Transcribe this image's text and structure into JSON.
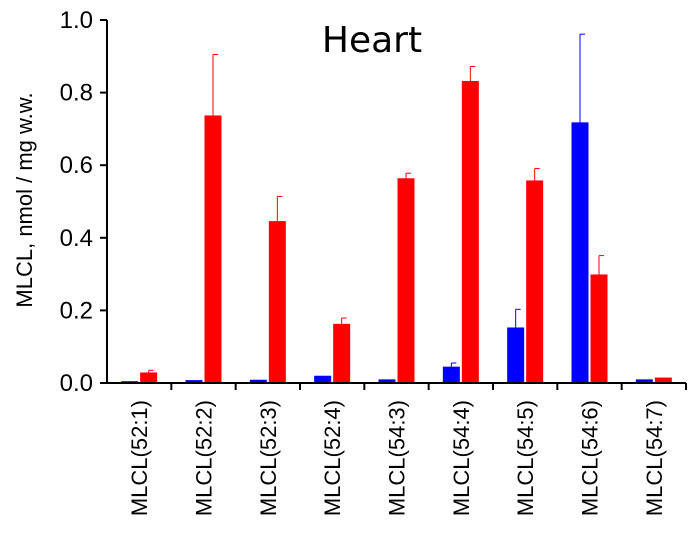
{
  "chart_data": {
    "type": "bar",
    "title": "Heart",
    "ylabel": "MLCL, nmol / mg w.w.",
    "xlabel": "",
    "ylim": [
      0,
      1.0
    ],
    "yticks": [
      "0.0",
      "0.2",
      "0.4",
      "0.6",
      "0.8",
      "1.0"
    ],
    "ytick_values": [
      0,
      0.2,
      0.4,
      0.6,
      0.8,
      1.0
    ],
    "grid": false,
    "categories": [
      "MLCL(52:1)",
      "MLCL(52:2)",
      "MLCL(52:3)",
      "MLCL(52:4)",
      "MLCL(54:3)",
      "MLCL(54:4)",
      "MLCL(54:5)",
      "MLCL(54:6)",
      "MLCL(54:7)"
    ],
    "series": [
      {
        "color": "#0000ff",
        "values": [
          0.005,
          0.008,
          0.009,
          0.02,
          0.01,
          0.045,
          0.153,
          0.718,
          0.01
        ],
        "errors": [
          0.0,
          0.0,
          0.0,
          0.0,
          0.0,
          0.01,
          0.05,
          0.243,
          0.0
        ]
      },
      {
        "color": "#ff0000",
        "values": [
          0.029,
          0.737,
          0.446,
          0.163,
          0.564,
          0.832,
          0.558,
          0.299,
          0.015
        ],
        "errors": [
          0.006,
          0.168,
          0.068,
          0.016,
          0.014,
          0.04,
          0.033,
          0.052,
          0.0
        ]
      }
    ]
  }
}
